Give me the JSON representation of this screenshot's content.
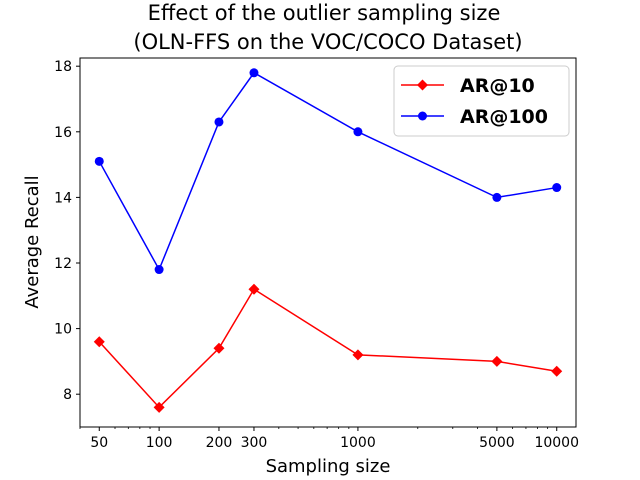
{
  "chart_data": {
    "type": "line",
    "title_lines": [
      "Effect of the outlier sampling size",
      "(OLN-FFS on the VOC/COCO Dataset)"
    ],
    "xlabel": "Sampling size",
    "ylabel": "Average Recall",
    "x_scale": "log",
    "x": [
      50,
      100,
      200,
      300,
      1000,
      5000,
      10000
    ],
    "x_tick_labels": [
      "50",
      "100",
      "200",
      "300",
      "1000",
      "5000",
      "10000"
    ],
    "xlim": [
      40,
      12500
    ],
    "ylim": [
      7.0,
      18.25
    ],
    "y_ticks": [
      8,
      10,
      12,
      14,
      16,
      18
    ],
    "y_tick_labels": [
      "8",
      "10",
      "12",
      "14",
      "16",
      "18"
    ],
    "grid": false,
    "legend_position": "upper-right",
    "series": [
      {
        "name": "AR@10",
        "color": "#ff0000",
        "marker": "diamond",
        "values": [
          9.6,
          7.6,
          9.4,
          11.2,
          9.2,
          9.0,
          8.7
        ]
      },
      {
        "name": "AR@100",
        "color": "#0000ff",
        "marker": "circle",
        "values": [
          15.1,
          11.8,
          16.3,
          17.8,
          16.0,
          14.0,
          14.3
        ]
      }
    ]
  }
}
